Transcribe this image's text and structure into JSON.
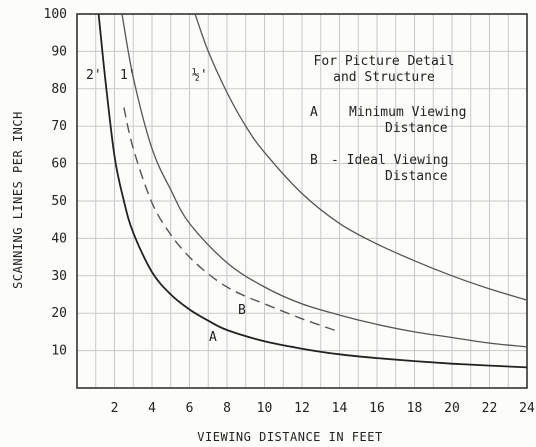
{
  "chart_data": {
    "type": "line",
    "xlabel": "VIEWING DISTANCE IN FEET",
    "ylabel": "SCANNING LINES PER INCH",
    "xlim": [
      0,
      24
    ],
    "ylim": [
      0,
      100
    ],
    "xticks": [
      2,
      4,
      6,
      8,
      10,
      12,
      14,
      16,
      18,
      20,
      22,
      24
    ],
    "yticks": [
      10,
      20,
      30,
      40,
      50,
      60,
      70,
      80,
      90,
      100
    ],
    "grid": true,
    "legend_title_lines": [
      "For Picture Detail",
      "and Structure"
    ],
    "legend_items": [
      {
        "key": "A",
        "lines": [
          "Minimum Viewing",
          "Distance"
        ]
      },
      {
        "key": "B",
        "lines": [
          "- Ideal Viewing",
          "Distance"
        ]
      }
    ],
    "series": [
      {
        "name": "2'",
        "style": "bold",
        "x": [
          1.15,
          1.5,
          2,
          2.5,
          3,
          4,
          5,
          6,
          7,
          8,
          10,
          12,
          14,
          16,
          18,
          20,
          22,
          24
        ],
        "y": [
          100,
          83,
          62,
          50,
          41.5,
          31,
          25,
          21,
          18,
          15.5,
          12.5,
          10.5,
          9,
          8,
          7.2,
          6.5,
          6,
          5.5
        ]
      },
      {
        "name": "1'",
        "style": "dashed",
        "x": [
          2.5,
          3,
          4,
          5,
          6,
          7,
          8,
          9,
          10,
          12,
          14
        ],
        "y": [
          75,
          64,
          49.5,
          41,
          35,
          30.5,
          27,
          24.5,
          22.5,
          18.5,
          15
        ]
      },
      {
        "name": "1'",
        "style": "normal",
        "x": [
          2.4,
          3,
          4,
          5,
          6,
          8,
          10,
          12,
          14,
          16,
          18,
          20,
          22,
          24
        ],
        "y": [
          100,
          83,
          64,
          53,
          44,
          33.5,
          27,
          22.5,
          19.5,
          17,
          15,
          13.5,
          12,
          11
        ]
      },
      {
        "name": "½'",
        "style": "normal",
        "x": [
          6.3,
          7,
          8,
          9,
          10,
          12,
          14,
          16,
          18,
          20,
          22,
          24
        ],
        "y": [
          100,
          90,
          79,
          70,
          63,
          52,
          44,
          38.5,
          34,
          30,
          26.5,
          23.5
        ]
      }
    ],
    "series_labels": [
      "2'",
      "1'",
      "½'"
    ],
    "curve_labels": [
      "A",
      "B"
    ]
  }
}
